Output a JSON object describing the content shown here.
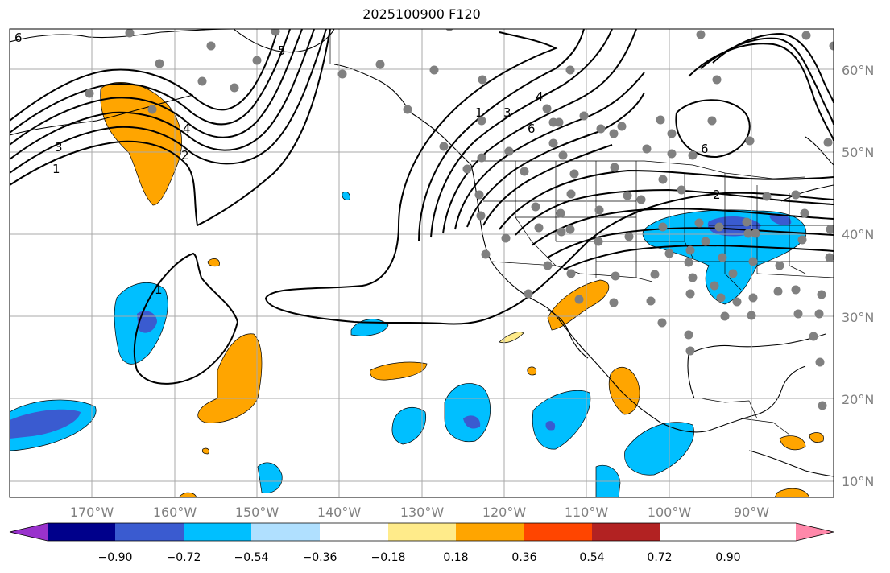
{
  "title": "2025100900 F120",
  "latitude_labels": [
    "60°N",
    "50°N",
    "40°N",
    "30°N",
    "20°N",
    "10°N"
  ],
  "longitude_labels": [
    "170°W",
    "160°W",
    "150°W",
    "140°W",
    "130°W",
    "120°W",
    "110°W",
    "100°W",
    "90°W"
  ],
  "colorbar": {
    "labels": [
      "−0.90",
      "−0.72",
      "−0.54",
      "−0.36",
      "−0.18",
      "0.18",
      "0.36",
      "0.54",
      "0.72",
      "0.90"
    ],
    "colors": [
      "#9932cc",
      "#00008b",
      "#3a5bd0",
      "#00bfff",
      "#b0e0ff",
      "#ffffff",
      "#ffeb8a",
      "#ffa500",
      "#ff4500",
      "#b22222",
      "#ff88aa"
    ]
  },
  "contour_labels": [
    "1",
    "2",
    "3",
    "4",
    "5",
    "6"
  ],
  "colors": {
    "grid": "#a9a9a9",
    "contour": "#000000",
    "station": "#808080",
    "coast": "#000000"
  }
}
